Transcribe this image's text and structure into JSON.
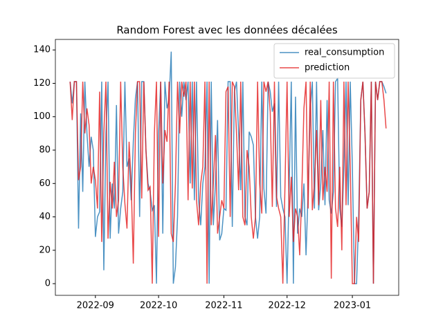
{
  "chart_data": {
    "type": "line",
    "title": "Random Forest avec les données décalées",
    "xlim": [
      -7,
      156
    ],
    "xticks": [
      {
        "value": 12,
        "label": "2022-09"
      },
      {
        "value": 42,
        "label": "2022-10"
      },
      {
        "value": 73,
        "label": "2022-11"
      },
      {
        "value": 103,
        "label": "2022-12"
      },
      {
        "value": 134,
        "label": "2023-01"
      }
    ],
    "ylim": [
      -7,
      146.3
    ],
    "yticks": [
      0,
      20,
      40,
      60,
      80,
      100,
      120,
      140
    ],
    "legend": "upper right",
    "series": [
      {
        "name": "real_consumption",
        "color": "#1f77b4",
        "values": [
          121,
          108,
          121,
          121,
          33,
          102,
          55,
          121,
          90,
          70,
          88,
          80,
          28,
          40,
          43,
          121,
          8,
          90,
          121,
          27,
          60,
          45,
          107,
          30,
          45,
          55,
          121,
          70,
          75,
          50,
          85,
          111,
          121,
          40,
          121,
          121,
          80,
          60,
          55,
          44,
          47,
          0,
          90,
          121,
          30,
          121,
          105,
          110,
          139,
          0,
          10,
          40,
          121,
          100,
          121,
          110,
          121,
          60,
          121,
          50,
          121,
          50,
          35,
          60,
          70,
          121,
          0,
          121,
          35,
          60,
          98,
          26,
          30,
          45,
          44,
          121,
          121,
          34,
          115,
          121,
          90,
          56,
          121,
          40,
          35,
          91,
          88,
          83,
          40,
          27,
          40,
          121,
          57,
          42,
          121,
          115,
          103,
          108,
          46,
          121,
          52,
          45,
          40,
          0,
          58,
          121,
          0,
          112,
          30,
          45,
          40,
          60,
          17,
          55,
          105,
          121,
          45,
          121,
          44,
          60,
          92,
          47,
          110,
          50,
          42,
          55,
          121,
          123,
          45,
          34,
          70,
          121,
          47,
          121,
          70,
          0,
          0,
          40,
          110,
          121,
          90,
          45,
          55,
          121,
          0,
          121,
          110,
          121,
          121,
          118,
          114
        ]
      },
      {
        "name": "prediction",
        "color": "#e31a1c",
        "values": [
          121,
          98,
          121,
          121,
          62,
          70,
          121,
          90,
          105,
          95,
          60,
          70,
          62,
          45,
          115,
          25,
          90,
          121,
          27,
          61,
          45,
          73,
          40,
          50,
          121,
          70,
          48,
          33,
          85,
          60,
          12,
          90,
          121,
          121,
          51,
          121,
          80,
          56,
          58,
          0,
          90,
          121,
          28,
          121,
          60,
          92,
          85,
          121,
          30,
          25,
          60,
          121,
          90,
          121,
          112,
          121,
          50,
          121,
          57,
          121,
          50,
          35,
          60,
          70,
          121,
          0,
          121,
          35,
          60,
          89,
          30,
          40,
          50,
          45,
          115,
          118,
          40,
          121,
          118,
          90,
          56,
          121,
          40,
          35,
          80,
          70,
          40,
          27,
          40,
          121,
          60,
          42,
          121,
          115,
          121,
          103,
          46,
          121,
          52,
          45,
          40,
          0,
          58,
          121,
          40,
          64,
          25,
          45,
          40,
          17,
          55,
          105,
          121,
          45,
          121,
          44,
          60,
          92,
          47,
          110,
          50,
          70,
          55,
          121,
          3,
          121,
          45,
          34,
          70,
          20,
          121,
          47,
          121,
          70,
          0,
          0,
          40,
          25,
          110,
          121,
          90,
          45,
          55,
          121,
          0,
          121,
          110,
          121,
          121,
          110,
          93
        ]
      }
    ]
  }
}
